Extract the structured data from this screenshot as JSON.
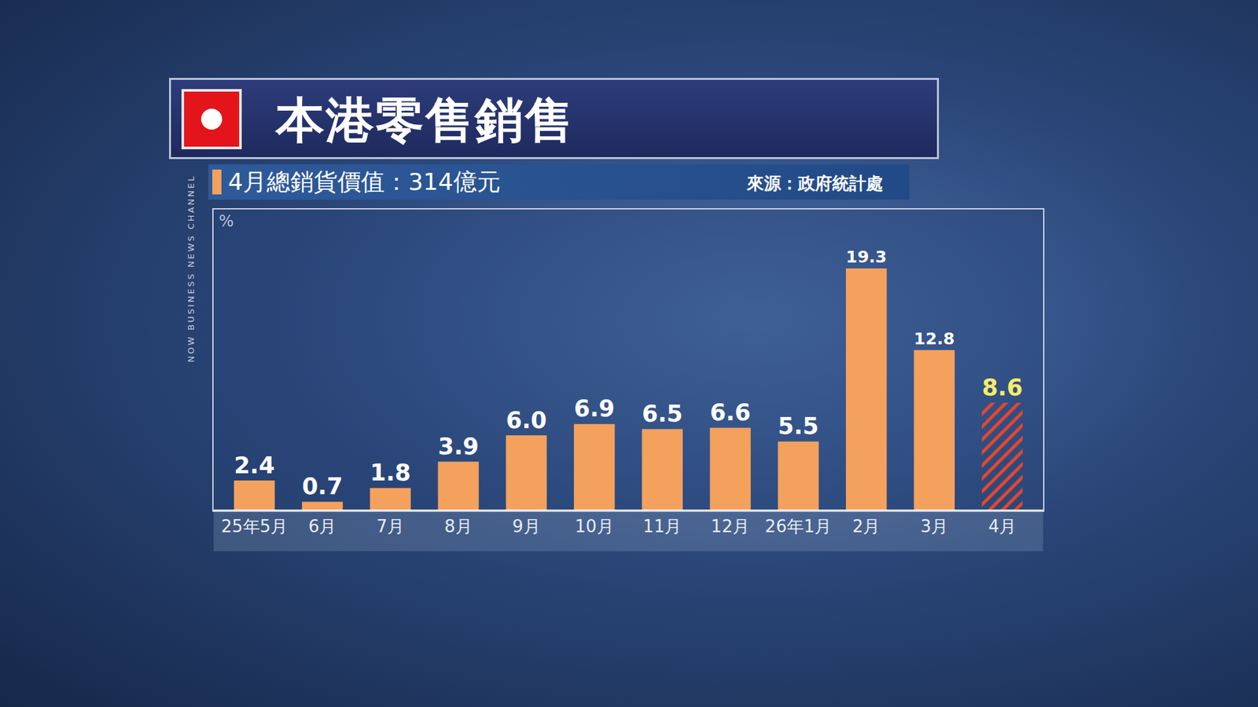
{
  "chart_data": {
    "type": "bar",
    "title": "本港零售銷售",
    "subtitle": "4月總銷貨價值：314億元",
    "source": "來源：政府統計處",
    "channel": "NOW BUSINESS NEWS CHANNEL",
    "y_label": "%",
    "categories": [
      "25年5月",
      "6月",
      "7月",
      "8月",
      "9月",
      "10月",
      "11月",
      "12月",
      "26年1月",
      "2月",
      "3月",
      "4月"
    ],
    "values": [
      2.4,
      0.7,
      1.8,
      3.9,
      6.0,
      6.9,
      6.5,
      6.6,
      5.5,
      19.3,
      12.8,
      8.6
    ],
    "value_labels": [
      "2.4",
      "0.7",
      "1.8",
      "3.9",
      "6.0",
      "6.9",
      "6.5",
      "6.6",
      "5.5",
      "19.3",
      "12.8",
      "8.6"
    ],
    "colors": [
      "#f4a15d",
      "#f4a15d",
      "#f4a15d",
      "#f4a15d",
      "#f4a15d",
      "#f4a15d",
      "#f4a15d",
      "#f4a15d",
      "#f4a15d",
      "#f4a15d",
      "#f4a15d",
      "#e8462a"
    ],
    "ylim": [
      0,
      24
    ],
    "grid": false,
    "data_labels": true,
    "tick_labels": "x"
  }
}
